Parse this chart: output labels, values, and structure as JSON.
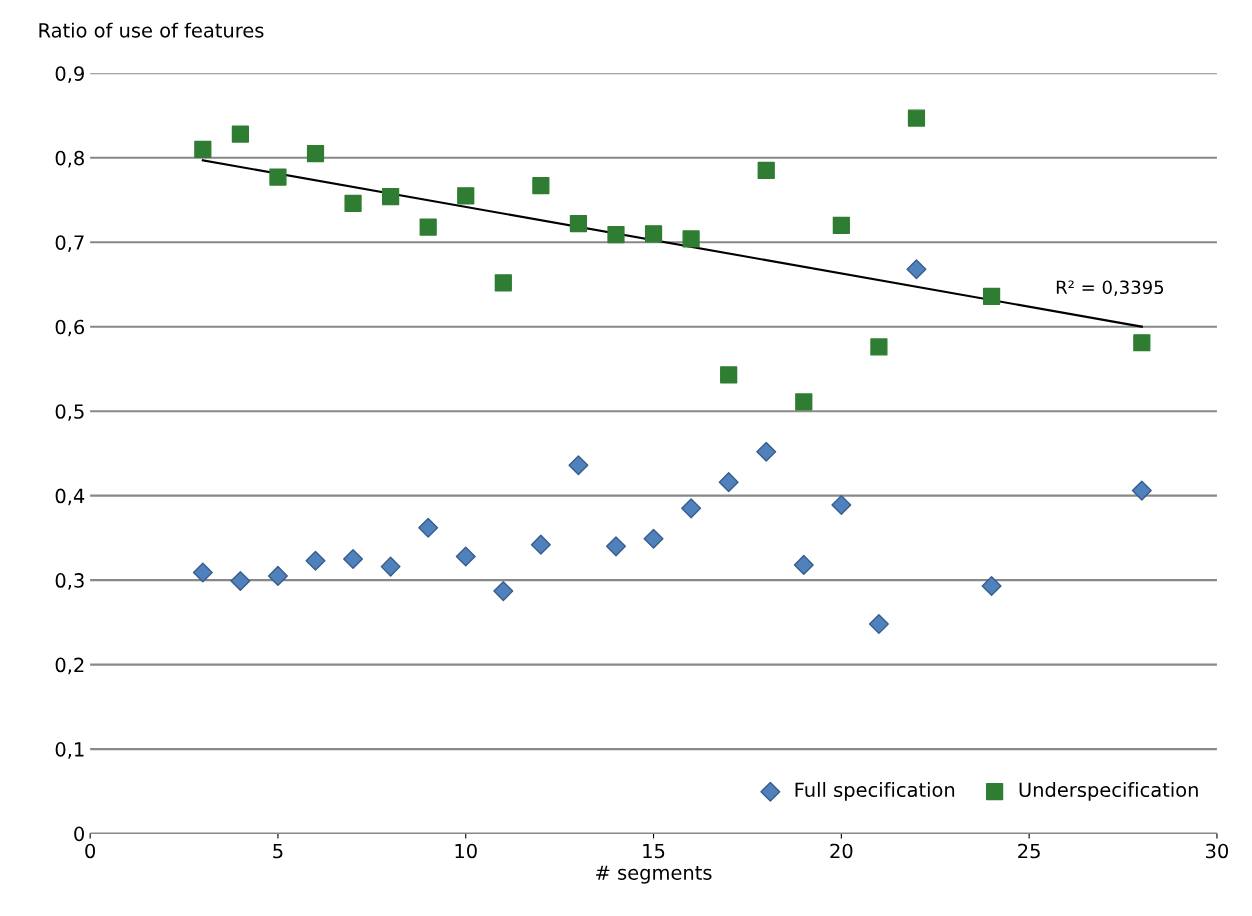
{
  "chart_data": {
    "type": "scatter",
    "ylabel": "Ratio of use of features",
    "xlabel": "# segments",
    "xlim": [
      0,
      30
    ],
    "xticks": [
      0,
      5,
      10,
      15,
      20,
      25,
      30
    ],
    "ylim": [
      0,
      0.9
    ],
    "yticks": [
      {
        "value": 0,
        "label": "0"
      },
      {
        "value": 0.1,
        "label": "0,1"
      },
      {
        "value": 0.2,
        "label": "0,2"
      },
      {
        "value": 0.3,
        "label": "0,3"
      },
      {
        "value": 0.4,
        "label": "0,4"
      },
      {
        "value": 0.5,
        "label": "0,5"
      },
      {
        "value": 0.6,
        "label": "0,6"
      },
      {
        "value": 0.7,
        "label": "0,7"
      },
      {
        "value": 0.8,
        "label": "0,8"
      },
      {
        "value": 0.9,
        "label": "0,9"
      }
    ],
    "grid": "y",
    "legend": "bottom right",
    "series": [
      {
        "name": "Full specification",
        "color": "#4f81bd",
        "marker": "diamond",
        "x": [
          3,
          4,
          5,
          6,
          7,
          8,
          9,
          10,
          11,
          12,
          13,
          14,
          15,
          16,
          17,
          18,
          19,
          20,
          21,
          22,
          24,
          28
        ],
        "values": [
          0.309,
          0.299,
          0.305,
          0.323,
          0.325,
          0.316,
          0.362,
          0.328,
          0.287,
          0.342,
          0.436,
          0.34,
          0.349,
          0.385,
          0.416,
          0.452,
          0.318,
          0.389,
          0.248,
          0.668,
          0.293,
          0.406
        ]
      },
      {
        "name": "Underspecification",
        "color": "#2e7d32",
        "marker": "square",
        "x": [
          3,
          4,
          5,
          6,
          7,
          8,
          9,
          10,
          11,
          12,
          13,
          14,
          15,
          16,
          17,
          18,
          19,
          20,
          21,
          22,
          24,
          28
        ],
        "values": [
          0.81,
          0.828,
          0.777,
          0.805,
          0.746,
          0.754,
          0.718,
          0.755,
          0.652,
          0.767,
          0.722,
          0.709,
          0.71,
          0.704,
          0.543,
          0.785,
          0.511,
          0.72,
          0.576,
          0.847,
          0.636,
          0.581
        ]
      },
      {
        "type": "line",
        "color": "#000000",
        "marker": "none",
        "x": [
          3,
          28
        ],
        "values": [
          0.797,
          0.6
        ]
      }
    ],
    "annotations": [
      "R² = 0,3395"
    ]
  }
}
